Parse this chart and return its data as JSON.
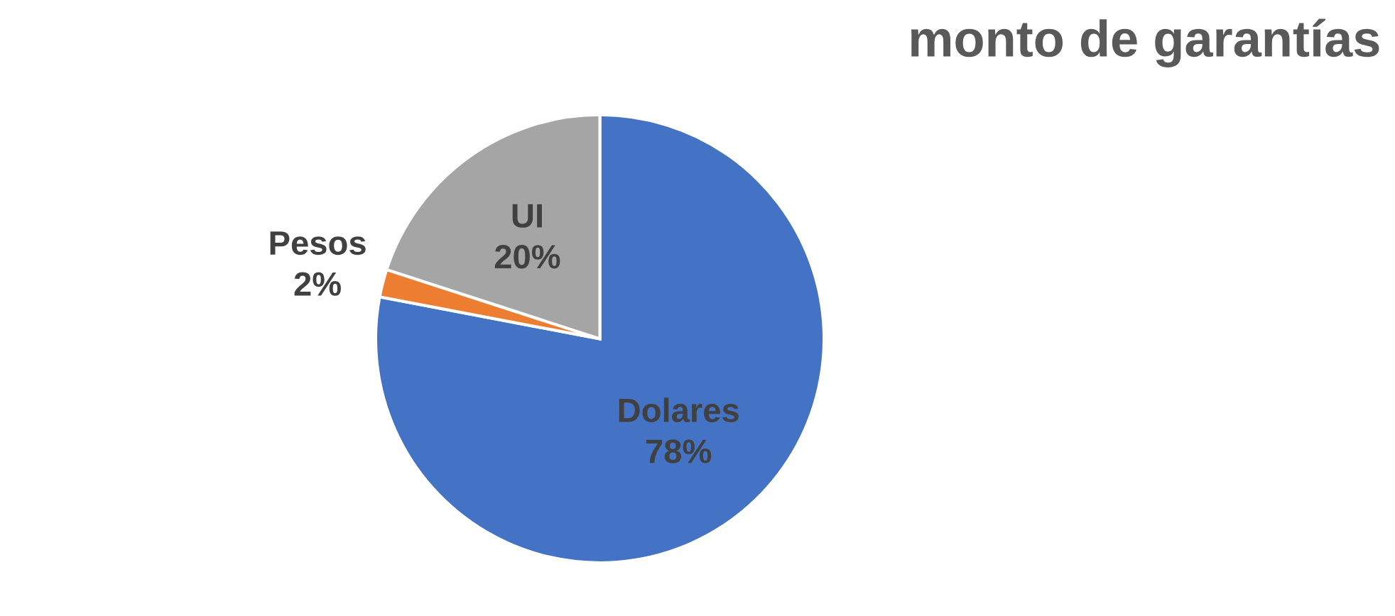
{
  "chart_data": {
    "type": "pie",
    "title": "monto de garantías",
    "categories": [
      "Dolares",
      "Pesos",
      "UI"
    ],
    "values": [
      78,
      2,
      20
    ],
    "value_labels": [
      "78%",
      "2%",
      "20%"
    ],
    "colors": [
      "#4472c4",
      "#ed7d31",
      "#a5a5a5"
    ]
  }
}
